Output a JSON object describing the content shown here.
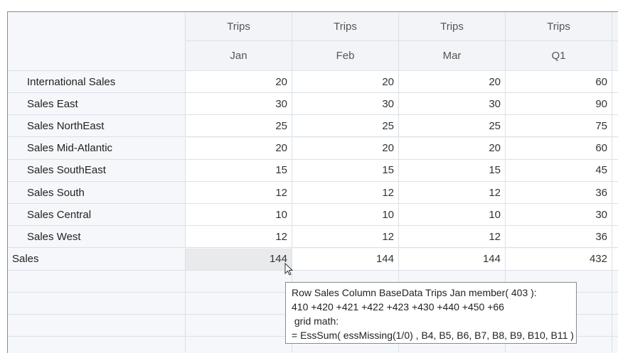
{
  "headers": {
    "measure": [
      "Trips",
      "Trips",
      "Trips",
      "Trips"
    ],
    "periods": [
      "Jan",
      "Feb",
      "Mar",
      "Q1"
    ]
  },
  "rows": [
    {
      "label": "International Sales",
      "values": [
        "20",
        "20",
        "20",
        "60"
      ]
    },
    {
      "label": "Sales East",
      "values": [
        "30",
        "30",
        "30",
        "90"
      ]
    },
    {
      "label": "Sales NorthEast",
      "values": [
        "25",
        "25",
        "25",
        "75"
      ]
    },
    {
      "label": "Sales Mid-Atlantic",
      "values": [
        "20",
        "20",
        "20",
        "60"
      ]
    },
    {
      "label": "Sales SouthEast",
      "values": [
        "15",
        "15",
        "15",
        "45"
      ]
    },
    {
      "label": "Sales South",
      "values": [
        "12",
        "12",
        "12",
        "36"
      ]
    },
    {
      "label": "Sales Central",
      "values": [
        "10",
        "10",
        "10",
        "30"
      ]
    },
    {
      "label": "Sales West",
      "values": [
        "12",
        "12",
        "12",
        "36"
      ]
    }
  ],
  "total": {
    "label": "Sales",
    "values": [
      "144",
      "144",
      "144",
      "432"
    ]
  },
  "tooltip": {
    "lines": [
      "Row Sales Column BaseData Trips Jan member( 403 ):",
      "410 +420 +421 +422 +423 +430 +440 +450 +66",
      " grid math:",
      "= EssSum( essMissing(1/0) , B4, B5, B6, B7, B8, B9, B10, B11 )"
    ]
  }
}
